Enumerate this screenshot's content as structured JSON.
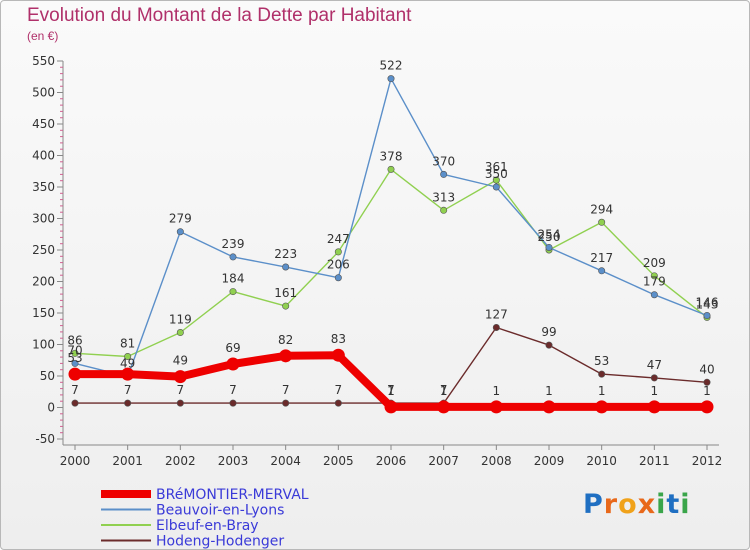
{
  "title": "Evolution du Montant de la Dette par Habitant",
  "unit_label": "(en €)",
  "brand": "Proxiti",
  "brand_letters": [
    {
      "ch": "P",
      "color": "#1f6fc2"
    },
    {
      "ch": "r",
      "color": "#e8681a"
    },
    {
      "ch": "o",
      "color": "#f0a21a"
    },
    {
      "ch": "x",
      "color": "#e8681a"
    },
    {
      "ch": "i",
      "color": "#3aa54a"
    },
    {
      "ch": "t",
      "color": "#1f6fc2"
    },
    {
      "ch": "i",
      "color": "#3aa54a"
    }
  ],
  "chart_data": {
    "type": "line",
    "title": "Evolution du Montant de la Dette par Habitant",
    "ylabel": "(en €)",
    "xlabel": "",
    "categories": [
      "2000",
      "2001",
      "2002",
      "2003",
      "2004",
      "2005",
      "2006",
      "2007",
      "2008",
      "2009",
      "2010",
      "2011",
      "2012"
    ],
    "ylim": [
      -50,
      550
    ],
    "yticks": [
      -50,
      0,
      50,
      100,
      150,
      200,
      250,
      300,
      350,
      400,
      450,
      500,
      550
    ],
    "grid": false,
    "legend_position": "bottom-left",
    "series": [
      {
        "name": "BRéMONTIER-MERVAL",
        "color": "#ee0000",
        "emphasis": true,
        "values": [
          53,
          53,
          49,
          69,
          82,
          83,
          1,
          1,
          1,
          1,
          1,
          1,
          1
        ],
        "labels": [
          "53",
          "",
          "49",
          "69",
          "82",
          "83",
          "1",
          "1",
          "1",
          "1",
          "1",
          "1",
          "1"
        ]
      },
      {
        "name": "Beauvoir-en-Lyons",
        "color": "#5b8fc9",
        "emphasis": false,
        "values": [
          70,
          49,
          279,
          239,
          223,
          206,
          522,
          370,
          350,
          254,
          217,
          179,
          146
        ],
        "labels": [
          "70",
          "49",
          "279",
          "239",
          "223",
          "206",
          "522",
          "370",
          "350",
          "254",
          "217",
          "179",
          "146"
        ]
      },
      {
        "name": "Elbeuf-en-Bray",
        "color": "#90d050",
        "emphasis": false,
        "values": [
          86,
          81,
          119,
          184,
          161,
          247,
          378,
          313,
          361,
          250,
          294,
          209,
          143
        ],
        "labels": [
          "86",
          "81",
          "119",
          "184",
          "161",
          "247",
          "378",
          "313",
          "361",
          "250",
          "294",
          "209",
          "143"
        ]
      },
      {
        "name": "Hodeng-Hodenger",
        "color": "#6b2b2b",
        "emphasis": false,
        "values": [
          7,
          7,
          7,
          7,
          7,
          7,
          7,
          7,
          127,
          99,
          53,
          47,
          40
        ],
        "labels": [
          "7",
          "7",
          "7",
          "7",
          "7",
          "7",
          "7",
          "7",
          "127",
          "99",
          "53",
          "47",
          "40"
        ]
      }
    ]
  }
}
